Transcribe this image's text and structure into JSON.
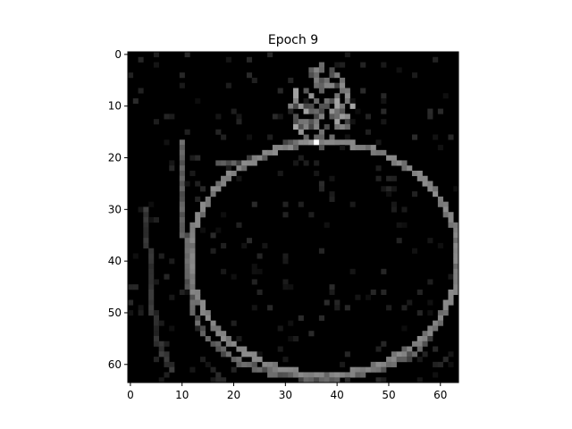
{
  "chart_data": {
    "type": "heatmap",
    "title": "Epoch 9",
    "xlabel": "",
    "ylabel": "",
    "colormap": "gray",
    "grid": false,
    "xlim": [
      -0.5,
      63.5
    ],
    "ylim": [
      63.5,
      -0.5
    ],
    "x_ticks": [
      0,
      10,
      20,
      30,
      40,
      50,
      60
    ],
    "y_ticks": [
      0,
      10,
      20,
      30,
      40,
      50,
      60
    ],
    "x_tick_labels": [
      "0",
      "10",
      "20",
      "30",
      "40",
      "50",
      "60"
    ],
    "y_tick_labels": [
      "0",
      "10",
      "20",
      "30",
      "40",
      "50",
      "60"
    ],
    "image_size": [
      64,
      64
    ],
    "description_of_content": "",
    "bright_strokes": [
      {
        "name": "apple-outline",
        "kind": "ellipse",
        "cx": 37.5,
        "cy": 39.5,
        "rx": 26,
        "ry": 22.5,
        "intensity": 0.55
      },
      {
        "name": "left-outline",
        "kind": "polyline",
        "points": [
          [
            10,
            17
          ],
          [
            10,
            30
          ],
          [
            11,
            40
          ],
          [
            12,
            50
          ],
          [
            15,
            55
          ],
          [
            20,
            59
          ],
          [
            28,
            62
          ],
          [
            38,
            63
          ],
          [
            48,
            61
          ],
          [
            55,
            58
          ],
          [
            60,
            52
          ]
        ],
        "intensity": 0.45
      },
      {
        "name": "stem-cluster",
        "kind": "blob",
        "cx": 37,
        "cy": 10,
        "rx": 6,
        "ry": 8,
        "intensity": 0.65
      },
      {
        "name": "leaf-left",
        "kind": "polyline",
        "points": [
          [
            17,
            21
          ],
          [
            22,
            21
          ],
          [
            27,
            19
          ],
          [
            31,
            17
          ]
        ],
        "intensity": 0.4
      },
      {
        "name": "far-left-stroke",
        "kind": "polyline",
        "points": [
          [
            3,
            30
          ],
          [
            4,
            45
          ],
          [
            5,
            55
          ],
          [
            8,
            61
          ]
        ],
        "intensity": 0.25
      }
    ],
    "hot_pixel": [
      36,
      17
    ]
  }
}
